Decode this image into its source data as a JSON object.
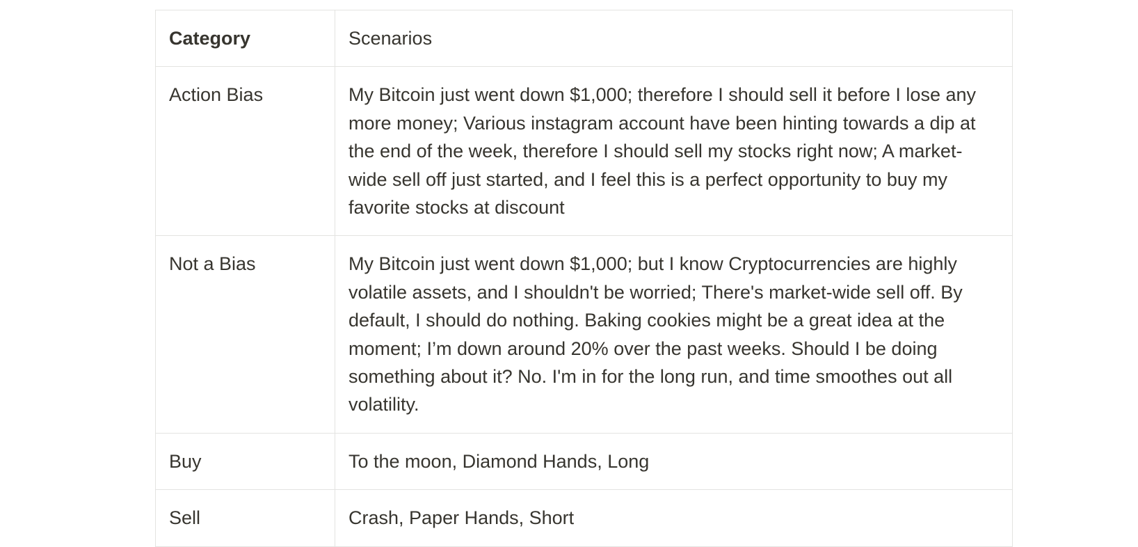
{
  "table": {
    "header": {
      "category": "Category",
      "scenarios": "Scenarios"
    },
    "rows": [
      {
        "category": "Action Bias",
        "scenarios": "My Bitcoin just went down $1,000; therefore I should sell it before I lose any more money; Various instagram account have been hinting towards a dip at the end of the week, therefore I should sell my stocks right now; A market-wide sell off just started, and I feel this is a perfect opportunity to buy my favorite stocks at discount"
      },
      {
        "category": "Not a Bias",
        "scenarios": "My Bitcoin just went down $1,000; but I know Cryptocurrencies are highly volatile assets, and I shouldn't be worried; There's market-wide sell off. By default, I should do nothing. Baking cookies might be a great idea at the moment; I’m down around 20% over the past weeks. Should I be doing something about it? No. I'm in for the long run, and time smoothes out all volatility."
      },
      {
        "category": "Buy",
        "scenarios": "To the moon, Diamond Hands, Long"
      },
      {
        "category": "Sell",
        "scenarios": "Crash, Paper Hands, Short"
      }
    ]
  }
}
